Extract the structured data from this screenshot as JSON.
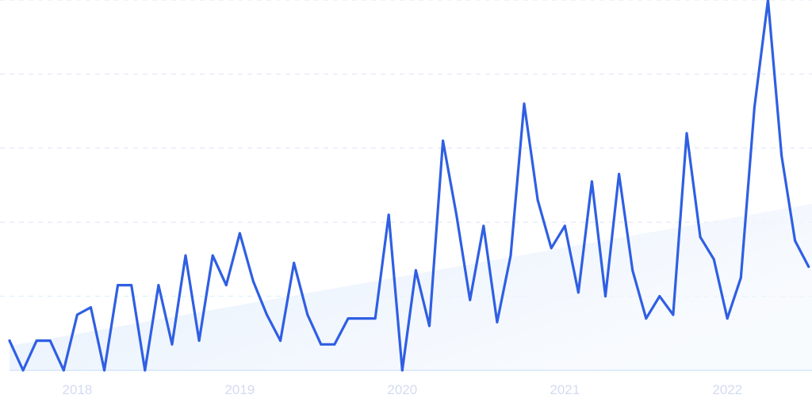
{
  "chart_data": {
    "type": "line",
    "title": "",
    "xlabel": "",
    "ylabel": "",
    "x_start": "2017-08",
    "x_interval": "month",
    "x_tick_labels": [
      "2018",
      "2019",
      "2020",
      "2021",
      "2022"
    ],
    "ylim": [
      0,
      100
    ],
    "y_gridlines": [
      20,
      40,
      60,
      80,
      100
    ],
    "grid": true,
    "legend": "none",
    "series": [
      {
        "values": [
          8,
          0,
          8,
          8,
          0,
          15,
          17,
          0,
          23,
          23,
          0,
          23,
          7,
          31,
          8,
          31,
          23,
          37,
          24,
          15,
          8,
          29,
          15,
          7,
          7,
          14,
          14,
          14,
          42,
          0,
          27,
          12,
          62,
          42,
          19,
          39,
          13,
          31,
          72,
          46,
          33,
          39,
          21,
          51,
          20,
          53,
          27,
          14,
          20,
          15,
          64,
          36,
          30,
          14,
          25,
          71,
          100,
          58,
          35,
          28
        ]
      }
    ],
    "trend": {
      "start_value": 6.6,
      "end_value": 45
    },
    "colors": {
      "line": "#2f5fe3",
      "trend_fill": "#e6f0fc",
      "grid": "#dfe4f5",
      "baseline": "#d6e6fa",
      "tick_label": "#d3dbf2"
    }
  }
}
